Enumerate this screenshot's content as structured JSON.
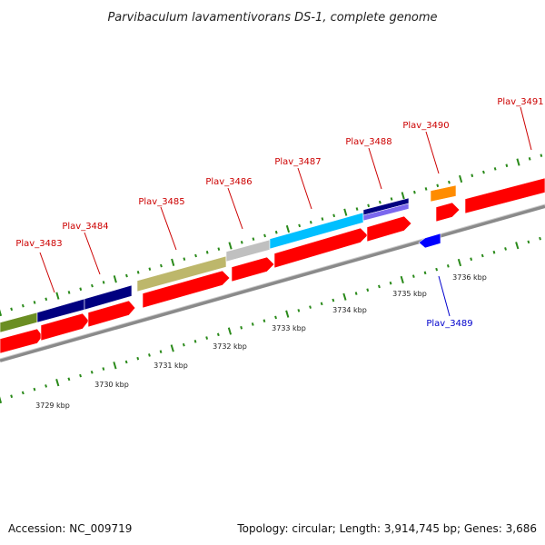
{
  "map": {
    "title": "Parvibaculum lavamentivorans DS-1, complete genome",
    "footer": {
      "accession": "Accession: NC_009719",
      "summary": "Topology: circular; Length: 3,914,745 bp; Genes: 3,686"
    },
    "colors": {
      "tick": "#2a8a1a",
      "backbone": "#909090",
      "label_forward": "#cc0000",
      "label_reverse": "#0000cc"
    },
    "scale_labels": [
      "3729 kbp",
      "3730 kbp",
      "3731 kbp",
      "3732 kbp",
      "3733 kbp",
      "3734 kbp",
      "3735 kbp",
      "3736 kbp"
    ],
    "labeled_genes": [
      {
        "name": "Plav_3483",
        "strand": "forward"
      },
      {
        "name": "Plav_3484",
        "strand": "forward"
      },
      {
        "name": "Plav_3485",
        "strand": "forward"
      },
      {
        "name": "Plav_3486",
        "strand": "forward"
      },
      {
        "name": "Plav_3487",
        "strand": "forward"
      },
      {
        "name": "Plav_3488",
        "strand": "forward"
      },
      {
        "name": "Plav_3489",
        "strand": "reverse"
      },
      {
        "name": "Plav_3490",
        "strand": "forward"
      },
      {
        "name": "Plav_3491",
        "strand": "forward"
      }
    ],
    "category_colors": [
      "#6b8e23",
      "#000080",
      "#bdb76b",
      "#c0c0c0",
      "#00bfff",
      "#7b68ee",
      "#ff8c00"
    ],
    "cds_color": "#ff0000",
    "reverse_cds_color": "#0000ff"
  }
}
